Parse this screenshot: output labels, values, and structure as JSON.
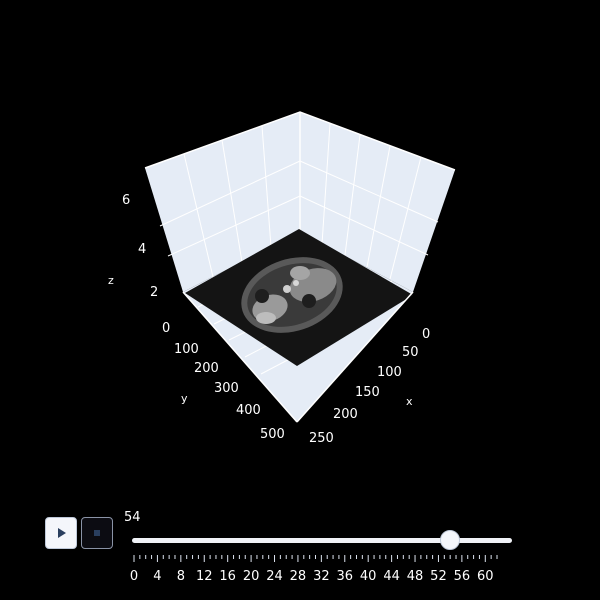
{
  "scene": {
    "axes": {
      "x": {
        "title": "x",
        "ticks": [
          "0",
          "50",
          "100",
          "150",
          "200",
          "250"
        ]
      },
      "y": {
        "title": "y",
        "ticks": [
          "0",
          "100",
          "200",
          "300",
          "400",
          "500"
        ]
      },
      "z": {
        "title": "z",
        "ticks": [
          "2",
          "4",
          "6"
        ]
      }
    },
    "colors": {
      "background": "#000000",
      "pane": "#e5ecf6",
      "grid": "#ffffff",
      "image_plane": "#141414"
    }
  },
  "slider": {
    "current_value": "54",
    "value": 54,
    "min": 0,
    "max": 62,
    "tick_labels": [
      "0",
      "4",
      "8",
      "12",
      "16",
      "20",
      "24",
      "28",
      "32",
      "36",
      "40",
      "44",
      "48",
      "52",
      "56",
      "60"
    ]
  },
  "controls": {
    "play_icon": "play-icon",
    "stop_icon": "stop-icon"
  }
}
